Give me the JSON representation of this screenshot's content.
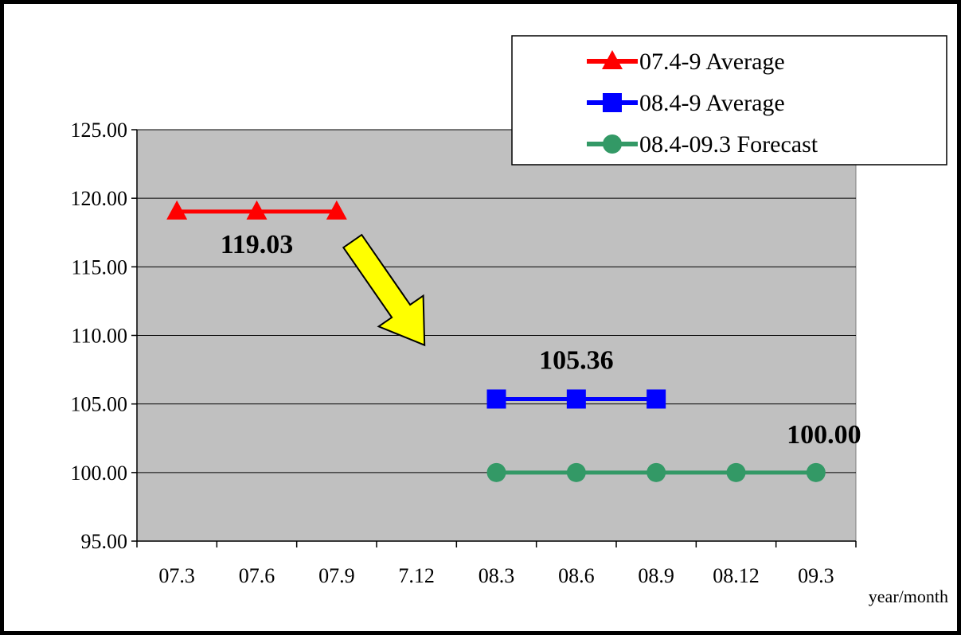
{
  "chart_data": {
    "type": "line",
    "title": "",
    "xlabel": "year/month",
    "ylabel": "",
    "ylim": [
      95,
      125
    ],
    "ytick_step": 5,
    "ytick_labels": [
      "95.00",
      "100.00",
      "105.00",
      "110.00",
      "115.00",
      "120.00",
      "125.00"
    ],
    "categories": [
      "07.3",
      "07.6",
      "07.9",
      "7.12",
      "08.3",
      "08.6",
      "08.9",
      "08.12",
      "09.3"
    ],
    "grid": "horizontal",
    "plot_background": "#c0c0c0",
    "legend_position": "top-right",
    "series": [
      {
        "name": "07.4-9 Average",
        "color": "#ff0000",
        "marker": "triangle",
        "values": [
          119.03,
          119.03,
          119.03,
          null,
          null,
          null,
          null,
          null,
          null
        ],
        "label": "119.03"
      },
      {
        "name": "08.4-9 Average",
        "color": "#0000ff",
        "marker": "square",
        "values": [
          null,
          null,
          null,
          null,
          105.36,
          105.36,
          105.36,
          null,
          null
        ],
        "label": "105.36"
      },
      {
        "name": "08.4-09.3 Forecast",
        "color": "#339966",
        "marker": "circle",
        "values": [
          null,
          null,
          null,
          null,
          100,
          100,
          100,
          100,
          100
        ],
        "label": "100.00"
      }
    ],
    "annotation": {
      "shape": "arrow",
      "color": "#ffff00",
      "from_category": "07.9",
      "to_category": "7.12",
      "from_value": 116,
      "to_value": 109
    }
  }
}
